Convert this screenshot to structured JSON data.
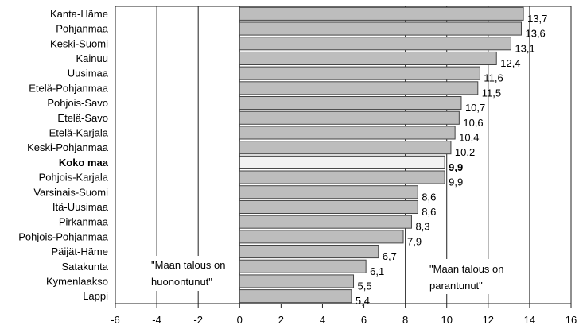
{
  "chart_data": {
    "type": "bar",
    "orientation": "horizontal",
    "categories": [
      "Kanta-Häme",
      "Pohjanmaa",
      "Keski-Suomi",
      "Kainuu",
      "Uusimaa",
      "Etelä-Pohjanmaa",
      "Pohjois-Savo",
      "Etelä-Savo",
      "Etelä-Karjala",
      "Keski-Pohjanmaa",
      "Koko maa",
      "Pohjois-Karjala",
      "Varsinais-Suomi",
      "Itä-Uusimaa",
      "Pirkanmaa",
      "Pohjois-Pohjanmaa",
      "Päijät-Häme",
      "Satakunta",
      "Kymenlaakso",
      "Lappi"
    ],
    "values": [
      13.7,
      13.6,
      13.1,
      12.4,
      11.6,
      11.5,
      10.7,
      10.6,
      10.4,
      10.2,
      9.9,
      9.9,
      8.6,
      8.6,
      8.3,
      7.9,
      6.7,
      6.1,
      5.5,
      5.4
    ],
    "value_labels": [
      "13,7",
      "13,6",
      "13,1",
      "12,4",
      "11,6",
      "11,5",
      "10,7",
      "10,6",
      "10,4",
      "10,2",
      "9,9",
      "9,9",
      "8,6",
      "8,6",
      "8,3",
      "7,9",
      "6,7",
      "6,1",
      "5,5",
      "5,4"
    ],
    "highlight_category": "Koko maa",
    "xlim": [
      -6,
      16
    ],
    "x_ticks": [
      -6,
      -4,
      -2,
      0,
      2,
      4,
      6,
      8,
      10,
      12,
      14,
      16
    ],
    "x_tick_labels": [
      "-6",
      "-4",
      "-2",
      "0",
      "2",
      "4",
      "6",
      "8",
      "10",
      "12",
      "14",
      "16"
    ],
    "vertical_gridlines_at": [
      -4,
      -2,
      0,
      8,
      10,
      12,
      14
    ],
    "title": "",
    "xlabel": "",
    "ylabel": "",
    "annotations": [
      {
        "lines": [
          "\"Maan talous on",
          "huonontunut\""
        ],
        "side": "left"
      },
      {
        "lines": [
          "\"Maan talous on",
          "parantunut\""
        ],
        "side": "right"
      }
    ]
  }
}
